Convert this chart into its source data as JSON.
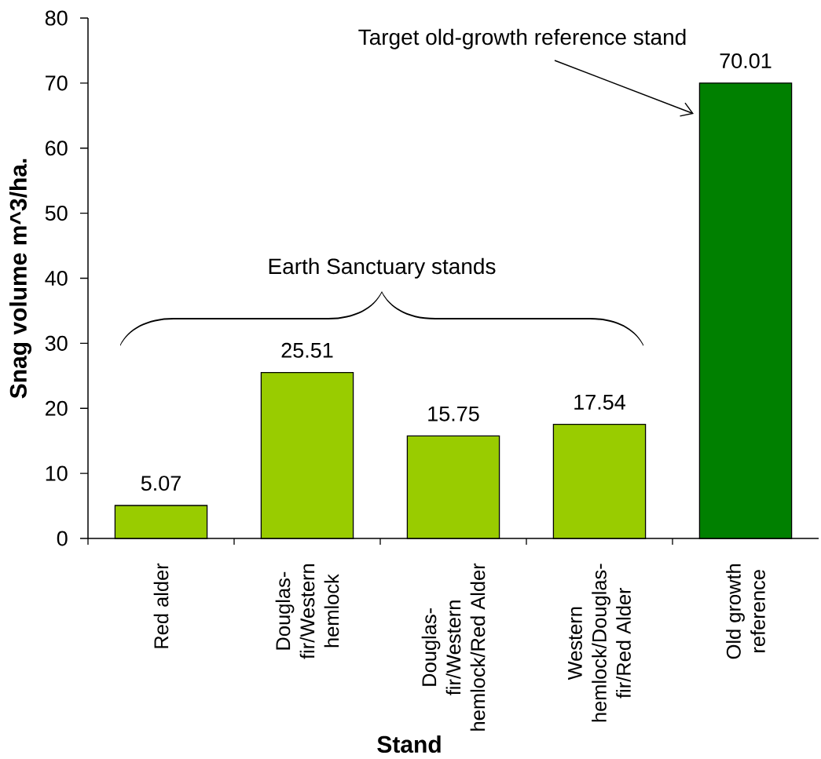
{
  "chart_data": {
    "type": "bar",
    "xlabel": "Stand",
    "ylabel": "Snag volume m^3/ha.",
    "categories": [
      "Red alder",
      "Douglas-fir/Western hemlock",
      "Douglas-fir/Western hemlock/Red Alder",
      "Western hemlock/Douglas-fir/Red Alder",
      "Old growth reference"
    ],
    "values": [
      5.07,
      25.51,
      15.75,
      17.54,
      70.01
    ],
    "colors": [
      "#99cc00",
      "#99cc00",
      "#99cc00",
      "#99cc00",
      "#008000"
    ],
    "ylim": [
      0,
      80
    ],
    "yticks": [
      0,
      10,
      20,
      30,
      40,
      50,
      60,
      70,
      80
    ],
    "data_labels": true,
    "annotations": [
      "Target old-growth reference stand",
      "Earth Sanctuary stands"
    ]
  }
}
